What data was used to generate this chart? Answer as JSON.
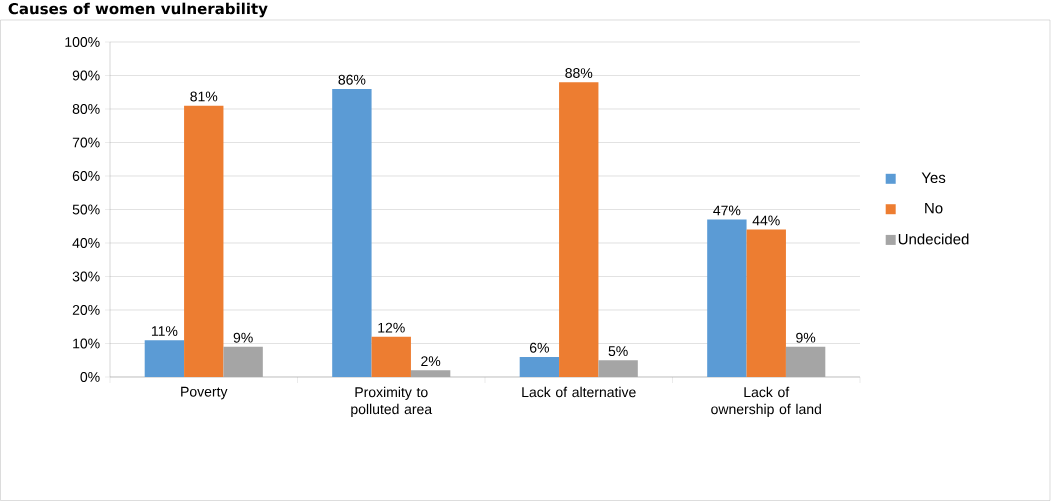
{
  "chart_data": {
    "type": "bar",
    "title": "Causes of women vulnerability",
    "categories": [
      "Poverty",
      "Proximity to polluted area",
      "Lack of alternative",
      "Lack of ownership of land"
    ],
    "series": [
      {
        "name": "Yes",
        "color": "#5b9bd5",
        "values": [
          11,
          86,
          6,
          47
        ],
        "value_labels": [
          "11%",
          "86%",
          "6%",
          "47%"
        ]
      },
      {
        "name": "No",
        "color": "#ed7d31",
        "values": [
          81,
          12,
          88,
          44
        ],
        "value_labels": [
          "81%",
          "12%",
          "88%",
          "44%"
        ]
      },
      {
        "name": "Undecided",
        "color": "#a5a5a5",
        "values": [
          9,
          2,
          5,
          9
        ],
        "value_labels": [
          "9%",
          "2%",
          "5%",
          "9%"
        ]
      }
    ],
    "ylim": [
      0,
      100
    ],
    "yticks": [
      {
        "value": 0,
        "label": "0%"
      },
      {
        "value": 10,
        "label": "10%"
      },
      {
        "value": 20,
        "label": "20%"
      },
      {
        "value": 30,
        "label": "30%"
      },
      {
        "value": 40,
        "label": "40%"
      },
      {
        "value": 50,
        "label": "50%"
      },
      {
        "value": 60,
        "label": "60%"
      },
      {
        "value": 70,
        "label": "70%"
      },
      {
        "value": 80,
        "label": "80%"
      },
      {
        "value": 90,
        "label": "90%"
      },
      {
        "value": 100,
        "label": "100%"
      }
    ],
    "grid": "y",
    "legend": "right"
  }
}
